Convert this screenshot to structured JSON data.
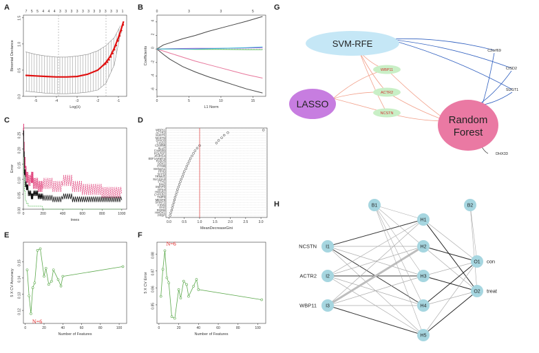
{
  "panels": {
    "A": "A",
    "B": "B",
    "C": "C",
    "D": "D",
    "E": "E",
    "F": "F",
    "G": "G",
    "H": "H"
  },
  "chart_data": [
    {
      "id": "A",
      "type": "line",
      "title": "",
      "xlabel": "Log(λ)",
      "ylabel": "Binomial Deviance",
      "xlim": [
        -5.6,
        -0.6
      ],
      "ylim": [
        0,
        1.55
      ],
      "xticks": [
        "-5",
        "-4",
        "-3",
        "-2",
        "-1"
      ],
      "xtick_values": [
        -5,
        -4,
        -3,
        -2,
        -1
      ],
      "yticks": [
        "0.0",
        "0.5",
        "1.0",
        "1.5"
      ],
      "ytick_values": [
        0,
        0.5,
        1,
        1.5
      ],
      "top_ticks": [
        "7",
        "5",
        "5",
        "4",
        "4",
        "4",
        "3",
        "3",
        "3",
        "3",
        "3",
        "3",
        "3",
        "3",
        "3",
        "3",
        "3",
        "1"
      ],
      "vlines": [
        -3.9,
        -1.6
      ],
      "series": [
        {
          "name": "mean",
          "x": [
            -5.5,
            -5,
            -4.5,
            -4,
            -3.5,
            -3,
            -2.5,
            -2,
            -1.8,
            -1.6,
            -1.4,
            -1.2,
            -1.0,
            -0.85,
            -0.75
          ],
          "y": [
            0.4,
            0.39,
            0.38,
            0.37,
            0.37,
            0.38,
            0.42,
            0.5,
            0.57,
            0.65,
            0.76,
            0.92,
            1.12,
            1.3,
            1.43
          ]
        },
        {
          "name": "upper",
          "x": [
            -5.5,
            -5,
            -4.5,
            -4,
            -3.5,
            -3,
            -2.5,
            -2,
            -1.6,
            -1.2,
            -0.9
          ],
          "y": [
            0.85,
            0.8,
            0.77,
            0.75,
            0.75,
            0.77,
            0.8,
            0.87,
            0.97,
            1.12,
            1.35
          ]
        },
        {
          "name": "lower",
          "x": [
            -5.5,
            -5,
            -4.5,
            -4,
            -3.5,
            -3,
            -2.5,
            -2,
            -1.6,
            -1.2,
            -0.9
          ],
          "y": [
            0.1,
            0.08,
            0.06,
            0.05,
            0.05,
            0.06,
            0.08,
            0.12,
            0.25,
            0.6,
            1.2
          ]
        }
      ]
    },
    {
      "id": "B",
      "type": "line",
      "title": "",
      "xlabel": "L1 Norm",
      "ylabel": "Coefficients",
      "xlim": [
        0,
        17
      ],
      "ylim": [
        -7,
        5
      ],
      "xticks": [
        "0",
        "5",
        "10",
        "15"
      ],
      "xtick_values": [
        0,
        5,
        10,
        15
      ],
      "yticks": [
        "-6",
        "-4",
        "-2",
        "0",
        "2",
        "4"
      ],
      "ytick_values": [
        -6,
        -4,
        -2,
        0,
        2,
        4
      ],
      "top_ticks": [
        "0",
        "3",
        "3",
        "5"
      ],
      "top_tick_values": [
        0,
        5,
        10,
        15
      ],
      "series": [
        {
          "name": "black-up",
          "color": "#444444",
          "x": [
            0,
            1,
            2,
            4,
            6,
            8,
            10,
            12,
            14,
            16.5
          ],
          "y": [
            0,
            0.6,
            0.9,
            1.5,
            2,
            2.6,
            3.1,
            3.6,
            4.1,
            4.8
          ]
        },
        {
          "name": "black-down",
          "color": "#444444",
          "x": [
            0,
            1,
            2,
            4,
            6,
            8,
            10,
            12,
            14,
            16.5
          ],
          "y": [
            0,
            -0.8,
            -1.5,
            -2.6,
            -3.4,
            -4.1,
            -4.7,
            -5.3,
            -5.9,
            -6.5
          ]
        },
        {
          "name": "pink",
          "color": "#e7759a",
          "x": [
            0,
            1,
            2,
            4,
            6,
            8,
            10,
            12,
            14,
            16.5
          ],
          "y": [
            0,
            -0.3,
            -0.6,
            -1.2,
            -1.8,
            -2.3,
            -2.8,
            -3.3,
            -3.8,
            -4.3
          ]
        },
        {
          "name": "purple",
          "color": "#a64dd7",
          "x": [
            0,
            2,
            6,
            10,
            14,
            16.5
          ],
          "y": [
            0,
            0.05,
            0.1,
            0.1,
            0.15,
            0.2
          ]
        },
        {
          "name": "green",
          "color": "#5fbf5f",
          "x": [
            0,
            2,
            6,
            10,
            14,
            16.5
          ],
          "y": [
            0,
            0,
            -0.05,
            -0.05,
            -0.1,
            -0.1
          ]
        },
        {
          "name": "cyan",
          "color": "#3cb9d9",
          "x": [
            0,
            2,
            6,
            10,
            14,
            16.5
          ],
          "y": [
            0,
            0,
            0,
            0.1,
            0.2,
            0.3
          ]
        }
      ]
    },
    {
      "id": "C",
      "type": "line",
      "title": "",
      "xlabel": "trees",
      "ylabel": "Error",
      "xlim": [
        0,
        1050
      ],
      "ylim": [
        0,
        0.27
      ],
      "xticks": [
        "0",
        "200",
        "400",
        "600",
        "800",
        "1000"
      ],
      "xtick_values": [
        0,
        200,
        400,
        600,
        800,
        1000
      ],
      "yticks": [
        "0.00",
        "0.05",
        "0.10",
        "0.15",
        "0.20",
        "0.25"
      ],
      "ytick_values": [
        0,
        0.05,
        0.1,
        0.15,
        0.2,
        0.25
      ],
      "series": [
        {
          "name": "OOB",
          "color": "#111111",
          "x": [
            1,
            5,
            10,
            20,
            30,
            50,
            80,
            100,
            150,
            200,
            300,
            400,
            500,
            600,
            700,
            800,
            900,
            1000
          ],
          "y": [
            0.25,
            0.18,
            0.12,
            0.08,
            0.07,
            0.05,
            0.04,
            0.05,
            0.04,
            0.035,
            0.03,
            0.04,
            0.03,
            0.03,
            0.03,
            0.03,
            0.03,
            0.03
          ]
        },
        {
          "name": "class1",
          "color": "#e0407a",
          "x": [
            1,
            5,
            10,
            20,
            30,
            50,
            80,
            100,
            150,
            200,
            300,
            400,
            500,
            600,
            700,
            800,
            900,
            1000
          ],
          "y": [
            0.26,
            0.2,
            0.15,
            0.12,
            0.1,
            0.09,
            0.1,
            0.08,
            0.07,
            0.08,
            0.07,
            0.09,
            0.07,
            0.06,
            0.06,
            0.05,
            0.05,
            0.05
          ]
        },
        {
          "name": "class2",
          "color": "#5fbf5f",
          "x": [
            1,
            5,
            10,
            20,
            30,
            50,
            80,
            100,
            200,
            400,
            600,
            800,
            1000
          ],
          "y": [
            0.22,
            0.12,
            0.06,
            0.03,
            0.02,
            0.01,
            0.01,
            0.01,
            0.0,
            0.0,
            0.0,
            0.0,
            0.0
          ]
        }
      ]
    },
    {
      "id": "D",
      "type": "scatter",
      "title": "",
      "xlabel": "MeanDecreaseGini",
      "ylabel": "",
      "xlim": [
        -0.1,
        3.2
      ],
      "vline": 1.0,
      "xticks": [
        "0.0",
        "0.5",
        "1.0",
        "1.5",
        "2.0",
        "2.5",
        "3.0"
      ],
      "xtick_values": [
        0,
        0.5,
        1,
        1.5,
        2,
        2.5,
        3
      ],
      "categories": [
        "WBP11",
        "ACTR2",
        "SUGT1",
        "NCSTN",
        "DHX33",
        "CISD2",
        "C2orf69",
        "SLU7",
        "FAM50B",
        "POLR2F",
        "ZC3H14",
        "EEF1AKMT4",
        "RAB25",
        "DDX1",
        "CYGB",
        "MAN2A1",
        "PPIG",
        "SFPQ",
        "TRIM21",
        "SLC43A3",
        "FTH1",
        "BIN2",
        "SMAP2",
        "GPX4",
        "HMGB1",
        "CYP1B1",
        "TNIP3",
        "MEGF8",
        "SPINT2",
        "FIBIN",
        "SAG",
        "RORB",
        "HMOX1",
        "PPBP"
      ],
      "values": [
        3.08,
        1.92,
        1.8,
        1.72,
        1.62,
        1.55,
        1.0,
        0.92,
        0.85,
        0.8,
        0.75,
        0.7,
        0.66,
        0.62,
        0.58,
        0.55,
        0.5,
        0.47,
        0.44,
        0.4,
        0.37,
        0.34,
        0.31,
        0.28,
        0.26,
        0.23,
        0.2,
        0.18,
        0.16,
        0.13,
        0.11,
        0.09,
        0.06,
        0.04
      ]
    },
    {
      "id": "E",
      "type": "line",
      "title": "",
      "xlabel": "Number of Features",
      "ylabel": "5 X CV Accuracy",
      "xlim": [
        -2,
        108
      ],
      "ylim": [
        0.112,
        0.162
      ],
      "xticks": [
        "0",
        "20",
        "40",
        "60",
        "80",
        "100"
      ],
      "xtick_values": [
        0,
        20,
        40,
        60,
        80,
        100
      ],
      "yticks": [
        "0.12",
        "0.13",
        "0.14",
        "0.15"
      ],
      "ytick_values": [
        0.12,
        0.13,
        0.14,
        0.15
      ],
      "annotation": "N=6",
      "annotation_x": 6,
      "x": [
        2,
        4,
        6,
        8,
        10,
        13,
        16,
        20,
        22,
        25,
        28,
        30,
        35,
        38,
        40,
        104
      ],
      "y": [
        0.145,
        0.129,
        0.118,
        0.134,
        0.137,
        0.157,
        0.158,
        0.141,
        0.146,
        0.136,
        0.138,
        0.145,
        0.139,
        0.135,
        0.141,
        0.147
      ]
    },
    {
      "id": "F",
      "type": "line",
      "title": "",
      "xlabel": "Number of Features",
      "ylabel": "5 X CV Error",
      "xlim": [
        -2,
        108
      ],
      "ylim": [
        0.839,
        0.887
      ],
      "xticks": [
        "0",
        "20",
        "40",
        "60",
        "80",
        "100"
      ],
      "xtick_values": [
        0,
        20,
        40,
        60,
        80,
        100
      ],
      "yticks": [
        "0.85",
        "0.86",
        "0.87",
        "0.88"
      ],
      "ytick_values": [
        0.85,
        0.86,
        0.87,
        0.88
      ],
      "annotation": "N=6",
      "annotation_x": 6,
      "x": [
        2,
        4,
        6,
        8,
        10,
        13,
        16,
        20,
        22,
        25,
        28,
        30,
        35,
        38,
        40,
        104
      ],
      "y": [
        0.855,
        0.871,
        0.882,
        0.866,
        0.863,
        0.843,
        0.842,
        0.859,
        0.854,
        0.864,
        0.862,
        0.855,
        0.861,
        0.865,
        0.859,
        0.853
      ]
    }
  ],
  "venn": {
    "lasso": "LASSO",
    "svm": "SVM-RFE",
    "rf_line1": "Random",
    "rf_line2": "Forest",
    "shared": [
      "WBP11",
      "ACTR2",
      "NCSTN"
    ],
    "svm_rf": [
      "C2orf69",
      "CISD2",
      "SUGT1"
    ],
    "rf_only": [
      "DHX33"
    ],
    "colors": {
      "lasso": "#c77de0",
      "svm": "#c5e7f6",
      "rf": "#ea79a3",
      "shared": "#c9efc6",
      "edge_orange": "#f2a08a",
      "edge_blue": "#2f5fbf",
      "shared_text": "#d23030"
    }
  },
  "network": {
    "inputs": [
      "I1",
      "I2",
      "I3"
    ],
    "input_labels": [
      "NCSTN",
      "ACTR2",
      "WBP11"
    ],
    "hidden": [
      "H1",
      "H2",
      "H3",
      "H4",
      "H5"
    ],
    "outputs": [
      "O1",
      "O2"
    ],
    "output_labels": [
      "con",
      "treat"
    ],
    "bias": [
      "B1",
      "B2"
    ],
    "node_color": "#a6d6e0"
  }
}
